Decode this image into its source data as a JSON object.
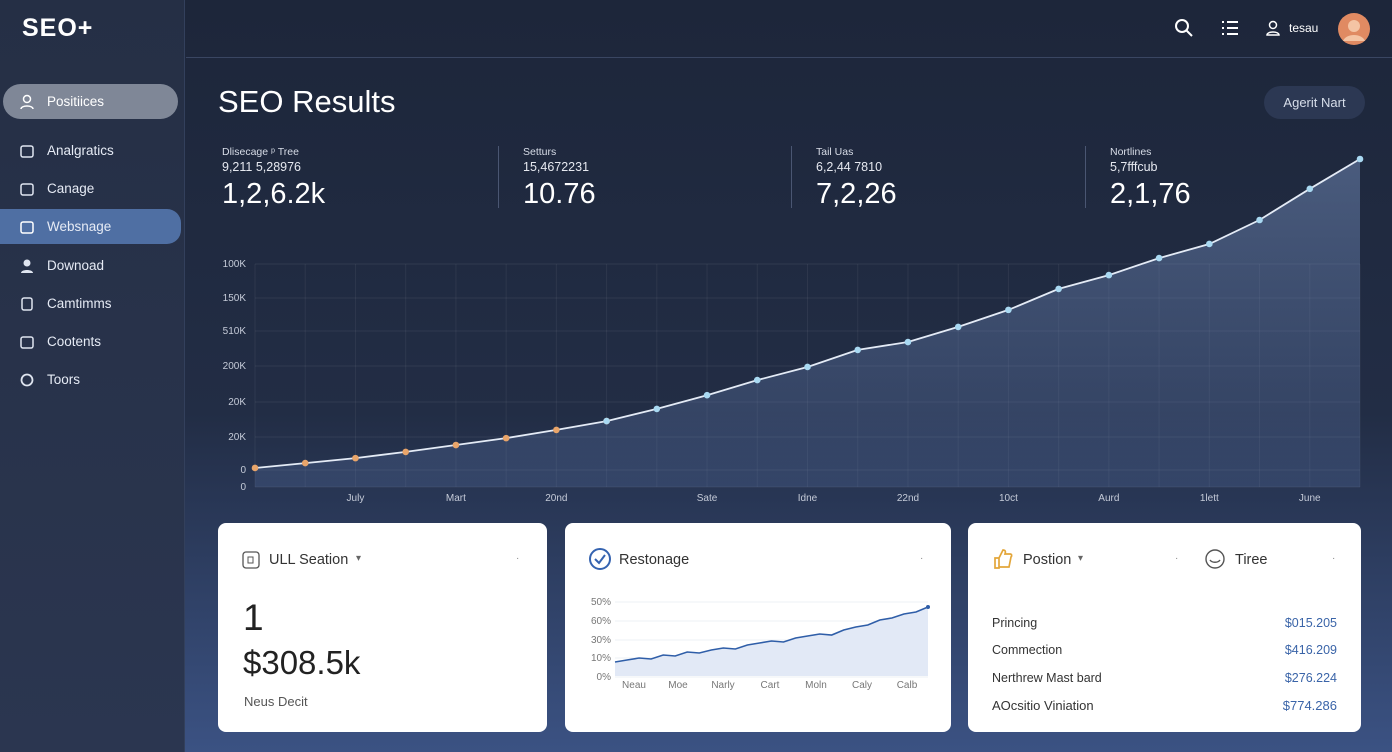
{
  "sidebar": {
    "logo": "SEO+",
    "nav": [
      "Positiices",
      "Analgratics",
      "Canage",
      "Websnage",
      "Downoad",
      "Camtimms",
      "Cootents",
      "Toors"
    ]
  },
  "topbar": {
    "user": "tesau"
  },
  "header": {
    "title": "SEO Results",
    "button": "Agerit Nart"
  },
  "stats": [
    {
      "label": "Dlisecage ᵖ Tree",
      "sublabel": "9,211 5,28976",
      "value": "1,2,6.2k"
    },
    {
      "label": "Setturs",
      "sublabel": "15,4672231",
      "value": "10.76"
    },
    {
      "label": "Tail Uas",
      "sublabel": "6,2,44 7810",
      "value": "7,2,26"
    },
    {
      "label": "Nortlines",
      "sublabel": "5,7fffcub",
      "value": "2,1,76"
    }
  ],
  "main_chart": {
    "type": "line",
    "categories": [
      null,
      null,
      "July",
      null,
      "Mart",
      null,
      "20nd",
      null,
      null,
      "Sate",
      null,
      "Idne",
      null,
      "22nd",
      null,
      "10ct",
      null,
      "Aurd",
      null,
      "1lett",
      null,
      "June",
      null
    ],
    "ylim": [
      0,
      100
    ],
    "y_labels": [
      "100K",
      "150K",
      "510K",
      "200K",
      "20K",
      "20K",
      "0",
      "0"
    ],
    "series": [
      {
        "color": "#e9a56a",
        "values": [
          5.8,
          7.3,
          8.8,
          10.7,
          12.8,
          14.9,
          17.4,
          20.1,
          null,
          null,
          null,
          null,
          null,
          null,
          null,
          null,
          null,
          null,
          null,
          null,
          null,
          null,
          null
        ]
      },
      {
        "color": "#a9d9f2",
        "values": [
          null,
          null,
          null,
          null,
          null,
          null,
          null,
          20.1,
          23.8,
          28.0,
          32.6,
          36.6,
          41.8,
          44.2,
          48.8,
          54.0,
          60.4,
          64.6,
          69.8,
          74.1,
          81.4,
          90.9,
          100
        ]
      }
    ]
  },
  "cards": {
    "section": {
      "title": "ULL Seation",
      "count": "1",
      "amount": "$308.5k",
      "caption": "Neus Decit"
    },
    "restonage": {
      "title": "Restonage",
      "chart": {
        "type": "area",
        "color": "#2f5ea8",
        "ylim": [
          0,
          100
        ],
        "y_labels": [
          "50%",
          "60%",
          "30%",
          "10%",
          "0%"
        ],
        "x_labels": [
          "Neau",
          "Moe",
          "Narly",
          "Cart",
          "Moln",
          "Caly",
          "Calb"
        ],
        "values": [
          18.4,
          21.1,
          23.7,
          22.4,
          27.6,
          26.3,
          31.6,
          30.3,
          34.2,
          36.8,
          35.5,
          40.8,
          43.4,
          46.1,
          44.7,
          50,
          52.6,
          55.3,
          53.9,
          60.5,
          64.5,
          67.1,
          73.7,
          76.3,
          81.6,
          84.2,
          90.8
        ]
      }
    },
    "position": {
      "title": "Postion",
      "tab": "Tiree",
      "rows": [
        [
          "Princing",
          "$015.205"
        ],
        [
          "Commection",
          "$416.209"
        ],
        [
          "Nerthrew Mast bard",
          "$276.224"
        ],
        [
          "AOcsitio Viniation",
          "$774.286"
        ]
      ]
    }
  }
}
